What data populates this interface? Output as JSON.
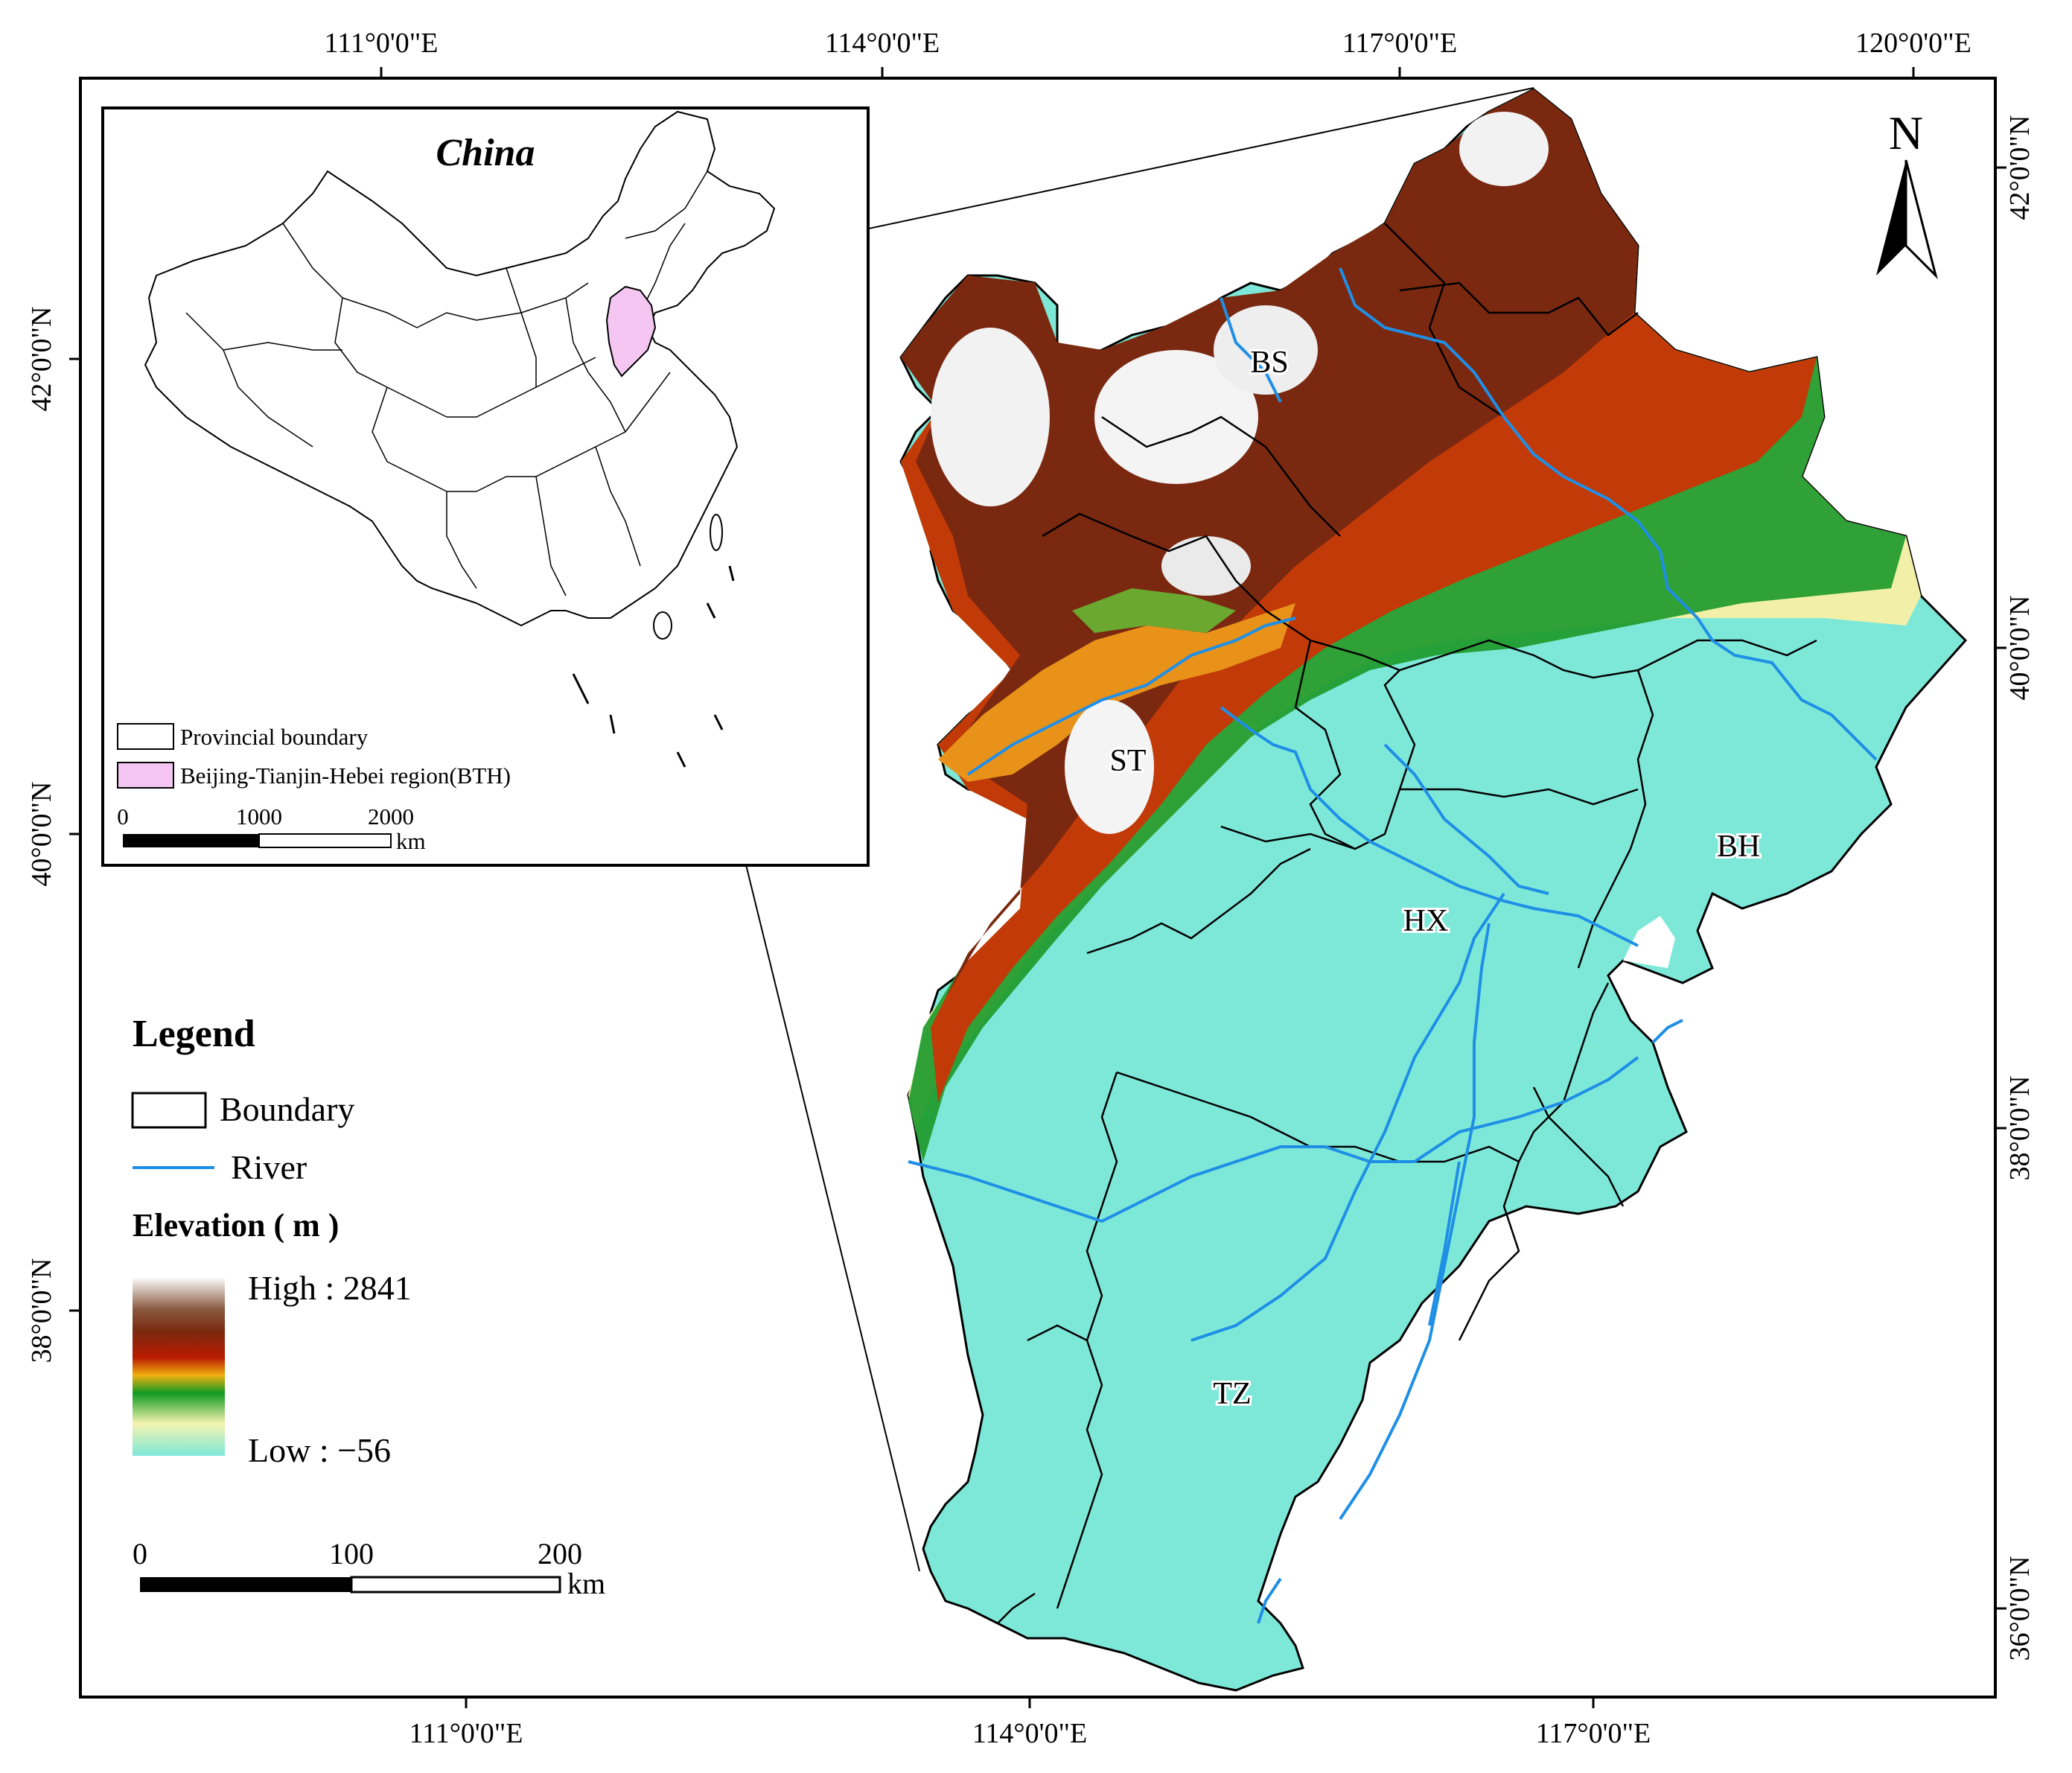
{
  "axes": {
    "top_ticks": [
      "111°0'0\"E",
      "114°0'0\"E",
      "117°0'0\"E",
      "120°0'0\"E"
    ],
    "bottom_ticks": [
      "111°0'0\"E",
      "114°0'0\"E",
      "117°0'0\"E"
    ],
    "left_ticks": [
      "42°0'0\"N",
      "40°0'0\"N",
      "38°0'0\"N"
    ],
    "right_ticks": [
      "42°0'0\"N",
      "40°0'0\"N",
      "38°0'0\"N",
      "36°0'0\"N"
    ]
  },
  "inset": {
    "title": "China",
    "legend_items": [
      {
        "label": "Provincial boundary",
        "color": "#ffffff"
      },
      {
        "label": "Beijing-Tianjin-Hebei region(BTH)",
        "color": "#f4c6f1"
      }
    ],
    "scale_labels": [
      "0",
      "1000",
      "2000"
    ],
    "scale_unit": "km"
  },
  "legend": {
    "title": "Legend",
    "boundary_label": "Boundary",
    "river_label": "River",
    "river_color": "#1f8fe6",
    "elevation_title": "Elevation ( m )",
    "high_label": "High : 2841",
    "low_label": "Low : −56"
  },
  "scale_bar": {
    "labels": [
      "0",
      "100",
      "200"
    ],
    "unit": "km"
  },
  "north_arrow": {
    "label": "N"
  },
  "regions": [
    {
      "code": "BS"
    },
    {
      "code": "ST"
    },
    {
      "code": "BH"
    },
    {
      "code": "HX"
    },
    {
      "code": "TZ"
    }
  ],
  "colors": {
    "plain": "#7fe8d8",
    "green": "#1a9a2a",
    "orange": "#ee9a10",
    "red": "#b82a08",
    "brown": "#7a2a10",
    "peak": "#f4f4f4",
    "inset_highlight": "#f4c6f1"
  }
}
